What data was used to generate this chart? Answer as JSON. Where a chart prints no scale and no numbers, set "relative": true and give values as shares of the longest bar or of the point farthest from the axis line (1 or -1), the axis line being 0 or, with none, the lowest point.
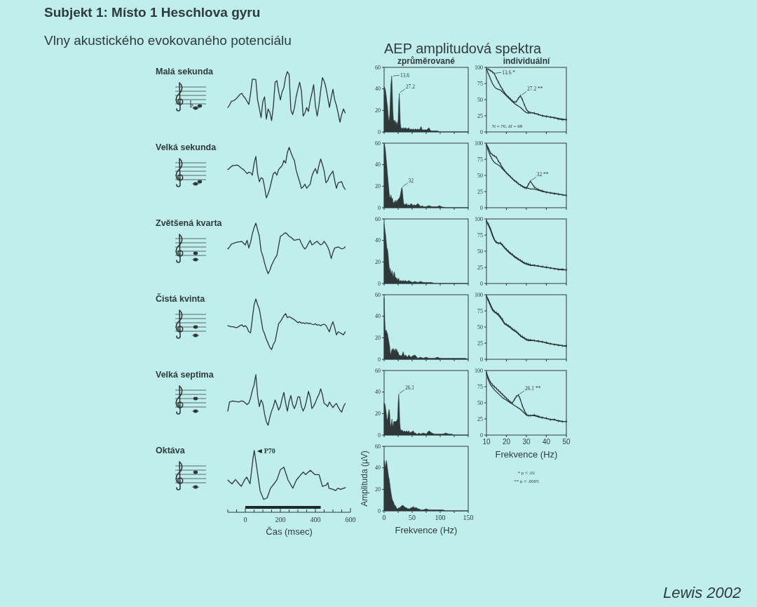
{
  "chart_data": [
    {
      "type": "line",
      "title": "Malá sekunda",
      "annotations": [
        "Subjekt 1: Místo 1 Heschlova gyru",
        "Vlny akustického evokovaného potenciálu"
      ],
      "relative": true,
      "tick_labels": false,
      "color": "#2e3838",
      "categories": [
        null,
        null,
        null,
        null,
        null,
        null,
        null,
        null,
        null,
        null,
        null,
        null,
        null,
        null,
        null,
        null,
        null,
        null,
        null,
        null,
        null,
        null,
        null,
        null,
        null,
        null,
        null,
        null,
        null,
        null,
        null,
        null,
        null,
        null,
        null,
        null,
        null,
        null,
        null,
        null,
        null,
        null,
        null,
        null,
        null,
        null,
        null,
        null,
        null,
        null,
        null,
        null,
        null,
        null,
        null,
        null,
        null,
        null,
        null,
        null,
        null,
        null,
        null,
        null,
        null,
        null,
        null,
        null,
        null,
        null,
        null
      ],
      "values": [
        0.29,
        0.34,
        0.41,
        0.42,
        0.44,
        0.47,
        0.51,
        0.55,
        0.57,
        0.51,
        0.47,
        0.41,
        0.35,
        0.57,
        0.85,
        0.85,
        0.84,
        0.44,
        0.27,
        0.09,
        0.41,
        0.5,
        0.06,
        0.26,
        0.19,
        0.03,
        0.31,
        0.79,
        0.82,
        0.61,
        0.44,
        0.6,
        0.68,
        0.89,
        1,
        0.94,
        0.24,
        0.15,
        0.28,
        0.5,
        0.65,
        0.79,
        0.62,
        0.12,
        0.18,
        0.29,
        0.21,
        0.42,
        0.57,
        0.74,
        0.32,
        0.12,
        0.33,
        0.62,
        0.88,
        0.81,
        0.68,
        0.49,
        0.29,
        0.48,
        0.65,
        0.44,
        0.33,
        0.17,
        0,
        0.15,
        0.26,
        0.18,
        null,
        null,
        null
      ]
    },
    {
      "type": "line",
      "title": "Velká sekunda",
      "relative": true,
      "tick_labels": false,
      "color": "#2e3838",
      "categories": [
        null,
        null,
        null,
        null,
        null,
        null,
        null,
        null,
        null,
        null,
        null,
        null,
        null,
        null,
        null,
        null,
        null,
        null,
        null,
        null,
        null,
        null,
        null,
        null,
        null,
        null,
        null,
        null,
        null,
        null,
        null,
        null,
        null,
        null,
        null,
        null,
        null,
        null,
        null,
        null,
        null,
        null,
        null,
        null,
        null,
        null,
        null,
        null,
        null,
        null,
        null,
        null,
        null,
        null,
        null,
        null,
        null,
        null,
        null,
        null,
        null,
        null,
        null,
        null,
        null,
        null,
        null,
        null,
        null,
        null,
        null
      ],
      "values": [
        0.56,
        0.59,
        0.62,
        0.64,
        0.64,
        0.65,
        0.64,
        0.61,
        0.58,
        0.56,
        0.52,
        0.48,
        0.51,
        0.5,
        0.45,
        0.68,
        0.82,
        0.48,
        0.32,
        0.4,
        0.38,
        0.21,
        0,
        0.08,
        0.19,
        0.34,
        0.48,
        0.51,
        0.45,
        0.56,
        0.6,
        0.64,
        0.74,
        0.69,
        0.9,
        1,
        0.9,
        0.81,
        0.74,
        0.55,
        0.43,
        0.32,
        0.19,
        0.22,
        0.27,
        0.19,
        0.23,
        0.27,
        0.43,
        0.52,
        0.58,
        0.48,
        0.64,
        0.77,
        0.66,
        0.53,
        0.3,
        0.34,
        0.43,
        0.48,
        0.53,
        0.34,
        0.19,
        0.3,
        0.31,
        0.32,
        0.22,
        0.17,
        null,
        null,
        null
      ]
    },
    {
      "type": "line",
      "title": "Zvětšená kvarta",
      "relative": true,
      "tick_labels": false,
      "color": "#2e3838",
      "categories": [
        null,
        null,
        null,
        null,
        null,
        null,
        null,
        null,
        null,
        null,
        null,
        null,
        null,
        null,
        null,
        null,
        null,
        null,
        null,
        null,
        null,
        null,
        null,
        null,
        null,
        null,
        null,
        null,
        null,
        null,
        null,
        null,
        null,
        null,
        null,
        null,
        null,
        null,
        null,
        null,
        null,
        null,
        null,
        null,
        null,
        null,
        null,
        null,
        null,
        null,
        null,
        null,
        null,
        null,
        null,
        null,
        null,
        null,
        null,
        null,
        null,
        null,
        null,
        null,
        null,
        null,
        null,
        null,
        null,
        null,
        null
      ],
      "values": [
        0.49,
        0.53,
        0.58,
        0.6,
        0.61,
        0.62,
        0.63,
        0.63,
        0.64,
        0.6,
        0.57,
        0.66,
        0.51,
        0.62,
        0.79,
        0.91,
        1,
        0.87,
        0.74,
        0.45,
        0.35,
        0.21,
        0.09,
        0,
        0.07,
        0.17,
        0.24,
        0.31,
        0.36,
        0.55,
        0.74,
        0.76,
        0.79,
        0.81,
        0.78,
        0.74,
        0.72,
        0.69,
        0.66,
        0.67,
        0.68,
        0.68,
        0.6,
        0.53,
        0.49,
        0.53,
        0.6,
        0.66,
        0.57,
        0.59,
        0.62,
        0.64,
        0.6,
        0.57,
        0.59,
        0.64,
        0.59,
        0.53,
        0.44,
        0.3,
        0.42,
        0.51,
        0.52,
        0.53,
        0.51,
        0.49,
        0.5,
        0.53,
        null,
        null,
        null
      ]
    },
    {
      "type": "line",
      "title": "Čistá kvinta",
      "relative": true,
      "tick_labels": false,
      "color": "#2e3838",
      "categories": [
        null,
        null,
        null,
        null,
        null,
        null,
        null,
        null,
        null,
        null,
        null,
        null,
        null,
        null,
        null,
        null,
        null,
        null,
        null,
        null,
        null,
        null,
        null,
        null,
        null,
        null,
        null,
        null,
        null,
        null,
        null,
        null,
        null,
        null,
        null,
        null,
        null,
        null,
        null,
        null,
        null,
        null,
        null,
        null,
        null,
        null,
        null,
        null,
        null,
        null,
        null,
        null,
        null,
        null,
        null,
        null,
        null,
        null,
        null,
        null,
        null,
        null,
        null,
        null,
        null,
        null,
        null,
        null,
        null,
        null,
        null
      ],
      "values": [
        0.47,
        0.46,
        0.45,
        0.45,
        0.44,
        0.43,
        0.45,
        0.47,
        0.49,
        0.45,
        0.47,
        0.43,
        0.35,
        0.33,
        0.61,
        0.88,
        1,
        0.89,
        0.8,
        0.6,
        0.39,
        0.31,
        0.2,
        0.12,
        0.04,
        0,
        0.1,
        0.16,
        0.34,
        0.51,
        0.55,
        0.61,
        0.67,
        0.71,
        0.63,
        0.65,
        0.63,
        0.61,
        0.59,
        0.56,
        0.53,
        0.55,
        0.52,
        0.53,
        0.51,
        0.53,
        0.51,
        0.52,
        0.5,
        0.49,
        0.51,
        0.48,
        0.49,
        0.47,
        0.49,
        0.5,
        0.48,
        0.41,
        0.35,
        0.47,
        0.55,
        0.43,
        0.29,
        0.35,
        0.33,
        0.31,
        0.29,
        0.35,
        null,
        null,
        null
      ]
    },
    {
      "type": "line",
      "title": "Velká septima",
      "relative": true,
      "tick_labels": false,
      "color": "#2e3838",
      "categories": [
        null,
        null,
        null,
        null,
        null,
        null,
        null,
        null,
        null,
        null,
        null,
        null,
        null,
        null,
        null,
        null,
        null,
        null,
        null,
        null,
        null,
        null,
        null,
        null,
        null,
        null,
        null,
        null,
        null,
        null,
        null,
        null,
        null,
        null,
        null,
        null,
        null,
        null,
        null,
        null,
        null,
        null,
        null,
        null,
        null,
        null,
        null,
        null,
        null,
        null,
        null,
        null,
        null,
        null,
        null,
        null,
        null,
        null,
        null,
        null,
        null,
        null,
        null,
        null,
        null,
        null,
        null,
        null,
        null,
        null,
        null
      ],
      "values": [
        0.28,
        0.46,
        0.47,
        0.48,
        0.47,
        0.47,
        0.46,
        0.47,
        0.48,
        0.47,
        0.44,
        0.41,
        0.44,
        0.54,
        0.69,
        0.8,
        1,
        0.59,
        0.37,
        0.5,
        0.43,
        0.22,
        0.07,
        0,
        0.16,
        0.28,
        0.37,
        0.5,
        0.41,
        0.3,
        0.37,
        0.53,
        0.65,
        0.44,
        0.28,
        0.47,
        0.59,
        0.41,
        0.33,
        0.42,
        0.56,
        0.56,
        0.37,
        0.28,
        0.36,
        0.5,
        0.67,
        0.56,
        0.33,
        0.38,
        0.45,
        0.54,
        0.61,
        0.72,
        0.6,
        0.43,
        0.41,
        0.37,
        0.46,
        0.4,
        0.35,
        0.4,
        0.43,
        0.36,
        0.3,
        0.26,
        0.37,
        0.43,
        null,
        null,
        null
      ]
    },
    {
      "type": "line",
      "title": "Oktáva",
      "xlabel": "Čas (msec)",
      "annotations": [
        {
          "text": "P70",
          "x": 51,
          "y": 1
        }
      ],
      "relative": true,
      "xlim": [
        -100,
        600
      ],
      "xticks": [
        {
          "value": -100,
          "label": null
        },
        {
          "value": -50,
          "label": null
        },
        0,
        {
          "value": 50,
          "label": null
        },
        {
          "value": 100,
          "label": null
        },
        {
          "value": 150,
          "label": null
        },
        200,
        {
          "value": 250,
          "label": null
        },
        {
          "value": 300,
          "label": null
        },
        {
          "value": 350,
          "label": null
        },
        400,
        {
          "value": 450,
          "label": null
        },
        {
          "value": 500,
          "label": null
        },
        {
          "value": 550,
          "label": null
        },
        600
      ],
      "tick_labels": "x",
      "bands": [
        {
          "axis": "x",
          "from": 0,
          "to": 430,
          "color": "#1f2828"
        }
      ],
      "color": "#2e3838",
      "x": [
        -100,
        -76,
        -56,
        -36,
        -23,
        -3,
        8,
        27,
        44,
        51,
        67,
        84,
        104,
        124,
        144,
        164,
        181,
        200,
        220,
        244,
        271,
        291,
        317,
        331,
        344,
        371,
        397,
        421,
        440,
        461,
        471,
        477,
        501,
        515,
        528,
        544,
        571
      ],
      "values": [
        0.52,
        0.46,
        0.53,
        0.46,
        0.42,
        0.53,
        0.57,
        0.46,
        0.88,
        1,
        0.69,
        0.35,
        0.21,
        0.23,
        0.39,
        0.46,
        0.53,
        0.69,
        0.73,
        0.52,
        0.39,
        0.52,
        0.61,
        0.65,
        0.61,
        0.68,
        0.61,
        0.61,
        0.42,
        0.44,
        0.48,
        0.39,
        0.37,
        0.35,
        0.39,
        0.37,
        0.4
      ]
    },
    {
      "type": "area",
      "title": "zprůměrované",
      "annotations": [
        "AEP amplitudová spektra",
        {
          "text": "13.6",
          "x": 13.6,
          "y": 52
        },
        {
          "text": "27.2",
          "x": 27.2,
          "y": 36
        }
      ],
      "xlim": [
        0,
        150
      ],
      "xticks": [
        0,
        {
          "value": 25,
          "label": null
        },
        50,
        {
          "value": 75,
          "label": null
        },
        100,
        {
          "value": 125,
          "label": null
        },
        150
      ],
      "ylim": [
        0,
        60
      ],
      "yticks": [
        0,
        20,
        40,
        60
      ],
      "tick_labels": "y",
      "color": "#2e3838",
      "x": [
        0,
        1,
        2,
        3,
        4,
        5,
        6,
        7,
        8,
        9,
        10,
        11,
        12,
        13.6,
        14.5,
        15.5,
        16.5,
        17.5,
        19,
        20,
        21,
        22,
        23,
        24,
        25,
        26,
        27.2,
        28,
        29,
        30,
        32,
        34,
        36,
        38,
        40,
        42,
        44,
        46,
        48,
        50,
        52,
        54,
        56,
        58,
        60,
        62,
        64,
        66,
        68,
        70,
        72,
        74,
        76,
        78,
        80,
        82,
        84,
        86,
        90,
        95,
        100,
        105,
        110,
        120,
        130,
        140,
        150
      ],
      "values": [
        42,
        41,
        40,
        37,
        33,
        28,
        24,
        18,
        12,
        10,
        16,
        30,
        44,
        52,
        40,
        22,
        12,
        10,
        11,
        8,
        10,
        7,
        9,
        6,
        12,
        28,
        36,
        24,
        8,
        4,
        3,
        4,
        3,
        4,
        3,
        3,
        4,
        2,
        3,
        2,
        3,
        2,
        3,
        2,
        3,
        2,
        3,
        5,
        2,
        2,
        2,
        2,
        2,
        3,
        4,
        2,
        1,
        1,
        1,
        1,
        0,
        0,
        0,
        0,
        0,
        0,
        0
      ]
    },
    {
      "type": "area",
      "annotations": [
        {
          "text": "32",
          "x": 32,
          "y": 19
        }
      ],
      "xlim": [
        0,
        150
      ],
      "xticks": [
        0,
        {
          "value": 25,
          "label": null
        },
        50,
        {
          "value": 75,
          "label": null
        },
        100,
        {
          "value": 125,
          "label": null
        },
        150
      ],
      "ylim": [
        0,
        60
      ],
      "yticks": [
        0,
        20,
        40,
        60
      ],
      "tick_labels": "y",
      "color": "#2e3838",
      "x": [
        0,
        1,
        2,
        3,
        4,
        5,
        6,
        7,
        8,
        9,
        10,
        11,
        12,
        13,
        14,
        15,
        16,
        17,
        18,
        19,
        20,
        21,
        22,
        23,
        24,
        25,
        26,
        27,
        28,
        29,
        30,
        31,
        32,
        33,
        34,
        35,
        36,
        38,
        40,
        42,
        44,
        46,
        48,
        50,
        52,
        54,
        56,
        58,
        60,
        62,
        64,
        66,
        68,
        70,
        75,
        80,
        85,
        90,
        95,
        99,
        102,
        110,
        120,
        130,
        140,
        150
      ],
      "values": [
        60,
        58,
        55,
        50,
        44,
        38,
        32,
        26,
        20,
        14,
        10,
        9,
        12,
        10,
        8,
        9,
        5,
        4,
        6,
        4,
        7,
        6,
        5,
        7,
        6,
        8,
        8,
        9,
        10,
        12,
        15,
        18,
        19,
        14,
        8,
        4,
        3,
        3,
        4,
        2,
        3,
        2,
        4,
        3,
        2,
        3,
        2,
        3,
        4,
        3,
        2,
        1,
        2,
        1,
        1,
        2,
        1,
        1,
        1,
        2,
        1,
        0,
        0,
        0,
        0,
        0
      ]
    },
    {
      "type": "area",
      "xlim": [
        0,
        150
      ],
      "xticks": [
        0,
        {
          "value": 25,
          "label": null
        },
        50,
        {
          "value": 75,
          "label": null
        },
        100,
        {
          "value": 125,
          "label": null
        },
        150
      ],
      "ylim": [
        0,
        60
      ],
      "yticks": [
        0,
        20,
        40,
        60
      ],
      "tick_labels": "y",
      "color": "#2e3838",
      "x": [
        0,
        1,
        2,
        3,
        4,
        5,
        6,
        7,
        8,
        9,
        10,
        11,
        12,
        13,
        14,
        15,
        16,
        17,
        18,
        19,
        20,
        21,
        22,
        23,
        24,
        25,
        26,
        27,
        28,
        30,
        32,
        34,
        36,
        38,
        40,
        42,
        44,
        46,
        48,
        50,
        55,
        60,
        65,
        70,
        75,
        80,
        85,
        90,
        95,
        100,
        105,
        110,
        115,
        120,
        125,
        130,
        135,
        140,
        145,
        150
      ],
      "values": [
        55,
        52,
        48,
        44,
        38,
        33,
        32,
        28,
        22,
        16,
        12,
        14,
        10,
        9,
        12,
        10,
        6,
        8,
        11,
        9,
        5,
        6,
        4,
        5,
        3,
        4,
        5,
        3,
        2,
        3,
        2,
        3,
        2,
        3,
        2,
        2,
        3,
        2,
        2,
        1,
        2,
        1,
        2,
        1,
        1,
        1,
        1,
        0,
        0,
        0,
        0,
        0,
        0,
        0,
        0,
        0,
        0,
        0,
        0,
        0
      ]
    },
    {
      "type": "area",
      "xlim": [
        0,
        150
      ],
      "xticks": [
        0,
        {
          "value": 25,
          "label": null
        },
        50,
        {
          "value": 75,
          "label": null
        },
        100,
        {
          "value": 125,
          "label": null
        },
        150
      ],
      "ylim": [
        0,
        60
      ],
      "yticks": [
        0,
        20,
        40,
        60
      ],
      "tick_labels": "y",
      "color": "#2e3838",
      "x": [
        0,
        1,
        2,
        3,
        4,
        5,
        6,
        7,
        8,
        9,
        10,
        11,
        12,
        13,
        14,
        15,
        16,
        17,
        18,
        19,
        20,
        21,
        22,
        23,
        24,
        25,
        26,
        27,
        28,
        30,
        32,
        34,
        36,
        38,
        40,
        42,
        44,
        46,
        48,
        50,
        55,
        60,
        65,
        70,
        75,
        80,
        85,
        90,
        95,
        100,
        105,
        110,
        115,
        120,
        125,
        130,
        135,
        140,
        145,
        150
      ],
      "values": [
        57,
        40,
        28,
        26,
        27,
        25,
        24,
        21,
        18,
        15,
        12,
        6,
        4,
        8,
        9,
        10,
        8,
        10,
        9,
        7,
        9,
        10,
        8,
        9,
        6,
        7,
        5,
        3,
        4,
        3,
        4,
        7,
        3,
        4,
        3,
        2,
        4,
        3,
        2,
        3,
        4,
        1,
        2,
        1,
        2,
        1,
        1,
        1,
        2,
        1,
        1,
        1,
        1,
        1,
        1,
        1,
        1,
        1,
        1,
        0
      ]
    },
    {
      "type": "area",
      "annotations": [
        {
          "text": "26.1",
          "x": 26.1,
          "y": 38
        }
      ],
      "xlim": [
        0,
        150
      ],
      "xticks": [
        0,
        {
          "value": 25,
          "label": null
        },
        50,
        {
          "value": 75,
          "label": null
        },
        100,
        {
          "value": 125,
          "label": null
        },
        150
      ],
      "ylim": [
        0,
        60
      ],
      "yticks": [
        0,
        20,
        40,
        60
      ],
      "tick_labels": "y",
      "color": "#2e3838",
      "x": [
        0,
        1,
        2,
        3,
        4,
        5,
        6,
        7,
        8,
        9,
        10,
        11,
        12,
        13,
        14,
        15,
        16,
        17,
        18,
        19,
        20,
        21,
        22,
        23,
        24,
        25,
        26.1,
        27,
        28,
        29,
        30,
        32,
        34,
        36,
        38,
        40,
        42,
        44,
        46,
        48,
        50,
        52,
        54,
        56,
        58,
        60,
        62,
        65,
        70,
        75,
        80,
        85,
        90,
        95,
        100,
        105,
        110,
        115,
        120,
        125,
        130,
        135,
        140,
        145,
        150
      ],
      "values": [
        30,
        29,
        28,
        24,
        20,
        15,
        14,
        18,
        22,
        24,
        20,
        10,
        8,
        12,
        15,
        10,
        8,
        12,
        13,
        12,
        13,
        12,
        13,
        14,
        15,
        30,
        38,
        30,
        12,
        6,
        4,
        5,
        3,
        4,
        3,
        4,
        3,
        4,
        2,
        3,
        3,
        4,
        2,
        2,
        1,
        1,
        2,
        1,
        2,
        1,
        4,
        2,
        1,
        1,
        1,
        1,
        2,
        1,
        1,
        0,
        0,
        0,
        0,
        0,
        0
      ]
    },
    {
      "type": "area",
      "xlabel": "Frekvence (Hz)",
      "ylabel": "Amplituda (µV)",
      "xlim": [
        0,
        150
      ],
      "xticks": [
        0,
        {
          "value": 25,
          "label": null
        },
        50,
        {
          "value": 75,
          "label": null
        },
        100,
        {
          "value": 125,
          "label": null
        },
        150
      ],
      "ylim": [
        0,
        60
      ],
      "yticks": [
        0,
        20,
        40,
        60
      ],
      "color": "#2e3838",
      "x": [
        0,
        1,
        2,
        3,
        4,
        5,
        6,
        7,
        8,
        9,
        10,
        11,
        12,
        13,
        14,
        15,
        16,
        17,
        18,
        19,
        20,
        21,
        22,
        23,
        24,
        25,
        26,
        28,
        30,
        32,
        34,
        36,
        38,
        40,
        42,
        44,
        46,
        48,
        50,
        52,
        54,
        56,
        58,
        60,
        62,
        65,
        70,
        75,
        80,
        85,
        90,
        95,
        100,
        105,
        110,
        115,
        120,
        125,
        130,
        135,
        140,
        145,
        150
      ],
      "values": [
        47,
        45,
        40,
        44,
        47,
        44,
        40,
        36,
        32,
        30,
        26,
        22,
        18,
        15,
        12,
        10,
        9,
        8,
        6,
        5,
        5,
        4,
        3,
        2,
        2,
        2,
        3,
        3,
        4,
        5,
        5,
        4,
        3,
        3,
        2,
        2,
        2,
        3,
        3,
        4,
        3,
        3,
        3,
        2,
        2,
        1,
        1,
        2,
        1,
        1,
        1,
        1,
        1,
        1,
        0,
        0,
        0,
        0,
        0,
        0,
        0,
        0,
        0
      ]
    },
    {
      "type": "line",
      "title": "individuální",
      "annotations": [
        {
          "text": "13.6 *",
          "x": 13.6,
          "y": 91
        },
        {
          "text": "27.2 **",
          "x": 27.2,
          "y": 56
        },
        "N = 70, df = 68"
      ],
      "xlim": [
        10,
        50
      ],
      "xticks": [
        10,
        20,
        30,
        40,
        50
      ],
      "ylim": [
        0,
        100
      ],
      "yticks": [
        0,
        25,
        50,
        75,
        100
      ],
      "tick_labels": "y",
      "x": [
        10,
        11,
        12,
        13,
        14,
        15,
        16,
        17,
        18,
        19,
        20,
        21,
        22,
        23,
        24,
        25,
        26,
        27,
        28,
        29,
        30,
        31,
        32,
        34,
        36,
        38,
        40,
        42,
        44,
        46,
        48,
        50
      ],
      "series": [
        {
          "color": "#2e3838",
          "values": [
            98,
            97,
            95,
            93,
            90,
            83,
            77,
            71,
            66,
            61,
            57,
            54,
            51,
            48,
            46,
            47,
            52,
            56,
            50,
            42,
            35,
            31,
            30,
            29,
            27,
            25,
            24,
            23,
            22,
            20,
            19,
            19
          ],
          "errors": [
            2,
            2,
            2,
            2,
            2,
            2,
            2,
            2,
            2,
            2,
            2,
            2,
            2,
            2,
            2,
            2,
            2,
            2,
            2,
            2,
            2,
            2,
            2,
            2,
            2,
            2,
            2,
            2,
            2,
            2,
            2,
            2
          ]
        },
        {
          "color": "#2e3838",
          "values": [
            97,
            90,
            82,
            75,
            70,
            67,
            66,
            65,
            62,
            59,
            56,
            53,
            50,
            47,
            44,
            42,
            40,
            38,
            35,
            32,
            30,
            29,
            30,
            29,
            27,
            25,
            24,
            23,
            22,
            21,
            20,
            19
          ]
        }
      ]
    },
    {
      "type": "line",
      "annotations": [
        {
          "text": "32 **",
          "x": 32,
          "y": 41
        }
      ],
      "xlim": [
        10,
        50
      ],
      "xticks": [
        10,
        20,
        30,
        40,
        50
      ],
      "ylim": [
        0,
        100
      ],
      "yticks": [
        0,
        25,
        50,
        75,
        100
      ],
      "tick_labels": "y",
      "x": [
        10,
        11,
        12,
        13,
        14,
        15,
        16,
        17,
        18,
        19,
        20,
        21,
        22,
        23,
        24,
        25,
        26,
        27,
        28,
        29,
        30,
        31,
        32,
        34,
        36,
        38,
        40,
        42,
        44,
        46,
        48,
        50
      ],
      "series": [
        {
          "color": "#2e3838",
          "values": [
            98,
            92,
            85,
            82,
            80,
            78,
            72,
            68,
            62,
            58,
            54,
            51,
            48,
            45,
            42,
            40,
            37,
            35,
            33,
            31,
            30,
            36,
            41,
            32,
            28,
            26,
            24,
            23,
            22,
            21,
            20,
            19
          ],
          "errors": [
            2,
            2,
            2,
            2,
            2,
            2,
            2,
            2,
            2,
            2,
            2,
            2,
            2,
            2,
            2,
            2,
            2,
            2,
            2,
            2,
            2,
            2,
            2,
            2,
            2,
            2,
            2,
            2,
            2,
            2,
            2,
            2
          ]
        },
        {
          "color": "#2e3838",
          "values": [
            96,
            88,
            80,
            74,
            70,
            68,
            66,
            64,
            60,
            57,
            54,
            51,
            48,
            45,
            42,
            40,
            37,
            35,
            33,
            32,
            31,
            30,
            29,
            29,
            27,
            25,
            24,
            23,
            22,
            21,
            20,
            19
          ]
        }
      ]
    },
    {
      "type": "line",
      "xlim": [
        10,
        50
      ],
      "xticks": [
        10,
        20,
        30,
        40,
        50
      ],
      "ylim": [
        0,
        100
      ],
      "yticks": [
        0,
        25,
        50,
        75,
        100
      ],
      "tick_labels": "y",
      "x": [
        10,
        11,
        12,
        13,
        14,
        15,
        16,
        17,
        18,
        19,
        20,
        21,
        22,
        23,
        24,
        25,
        26,
        27,
        28,
        29,
        30,
        31,
        32,
        34,
        36,
        38,
        40,
        42,
        44,
        46,
        48,
        50
      ],
      "series": [
        {
          "color": "#2e3838",
          "values": [
            97,
            92,
            85,
            76,
            68,
            64,
            62,
            63,
            60,
            56,
            53,
            50,
            47,
            45,
            42,
            40,
            38,
            36,
            34,
            32,
            31,
            30,
            29,
            28,
            27,
            26,
            25,
            24,
            23,
            22,
            22,
            21
          ],
          "errors": [
            2,
            2,
            2,
            2,
            2,
            2,
            2,
            2,
            2,
            2,
            2,
            2,
            2,
            2,
            2,
            2,
            2,
            2,
            2,
            2,
            2,
            2,
            2,
            2,
            2,
            2,
            2,
            2,
            2,
            2,
            2,
            2
          ]
        },
        {
          "color": "#2e3838",
          "values": [
            96,
            90,
            83,
            74,
            67,
            63,
            63,
            62,
            59,
            55,
            52,
            49,
            46,
            44,
            41,
            39,
            37,
            35,
            33,
            31,
            30,
            29,
            28,
            28,
            27,
            26,
            25,
            24,
            23,
            22,
            21,
            21
          ]
        }
      ]
    },
    {
      "type": "line",
      "xlim": [
        10,
        50
      ],
      "xticks": [
        10,
        20,
        30,
        40,
        50
      ],
      "ylim": [
        0,
        100
      ],
      "yticks": [
        0,
        25,
        50,
        75,
        100
      ],
      "tick_labels": "y",
      "x": [
        10,
        11,
        12,
        13,
        14,
        15,
        16,
        17,
        18,
        19,
        20,
        21,
        22,
        23,
        24,
        25,
        26,
        27,
        28,
        29,
        30,
        31,
        32,
        34,
        36,
        38,
        40,
        42,
        44,
        46,
        48,
        50
      ],
      "series": [
        {
          "color": "#2e3838",
          "values": [
            98,
            92,
            85,
            78,
            74,
            72,
            70,
            66,
            62,
            56,
            54,
            52,
            50,
            47,
            45,
            43,
            40,
            37,
            35,
            33,
            31,
            30,
            30,
            29,
            28,
            27,
            26,
            24,
            23,
            22,
            21,
            21
          ],
          "errors": [
            2,
            2,
            2,
            2,
            2,
            2,
            2,
            2,
            2,
            2,
            2,
            2,
            2,
            2,
            2,
            2,
            2,
            2,
            2,
            2,
            2,
            2,
            2,
            2,
            2,
            2,
            2,
            2,
            2,
            2,
            2,
            2
          ]
        },
        {
          "color": "#2e3838",
          "values": [
            97,
            90,
            83,
            76,
            73,
            71,
            68,
            64,
            60,
            55,
            53,
            51,
            49,
            46,
            44,
            42,
            39,
            36,
            34,
            32,
            30,
            29,
            29,
            29,
            28,
            27,
            25,
            24,
            23,
            22,
            21,
            20
          ]
        }
      ]
    },
    {
      "type": "line",
      "xlabel": "Frekvence (Hz)",
      "annotations": [
        {
          "text": "26.1 **",
          "x": 26.1,
          "y": 62
        },
        "* p < .01",
        "** p < .0005",
        "Lewis 2002"
      ],
      "xlim": [
        10,
        50
      ],
      "xticks": [
        10,
        20,
        30,
        40,
        50
      ],
      "ylim": [
        0,
        100
      ],
      "yticks": [
        0,
        25,
        50,
        75,
        100
      ],
      "x": [
        10,
        11,
        12,
        13,
        14,
        15,
        16,
        17,
        18,
        19,
        20,
        21,
        22,
        23,
        24,
        25,
        26,
        27,
        28,
        29,
        30,
        31,
        32,
        34,
        36,
        38,
        40,
        42,
        44,
        46,
        48,
        50
      ],
      "series": [
        {
          "color": "#2e3838",
          "values": [
            97,
            88,
            82,
            78,
            75,
            72,
            69,
            66,
            63,
            60,
            57,
            54,
            51,
            50,
            55,
            60,
            62,
            55,
            45,
            38,
            32,
            30,
            30,
            31,
            29,
            27,
            26,
            24,
            24,
            22,
            21,
            21
          ],
          "errors": [
            2,
            2,
            2,
            2,
            2,
            2,
            2,
            2,
            2,
            2,
            2,
            2,
            2,
            2,
            2,
            2,
            2,
            2,
            2,
            2,
            2,
            2,
            2,
            2,
            2,
            2,
            2,
            2,
            2,
            2,
            2,
            2
          ]
        },
        {
          "color": "#2e3838",
          "values": [
            95,
            85,
            78,
            74,
            70,
            67,
            64,
            61,
            58,
            56,
            54,
            52,
            50,
            48,
            46,
            44,
            42,
            40,
            37,
            34,
            31,
            30,
            30,
            30,
            28,
            27,
            26,
            24,
            24,
            22,
            21,
            21
          ]
        }
      ]
    }
  ]
}
